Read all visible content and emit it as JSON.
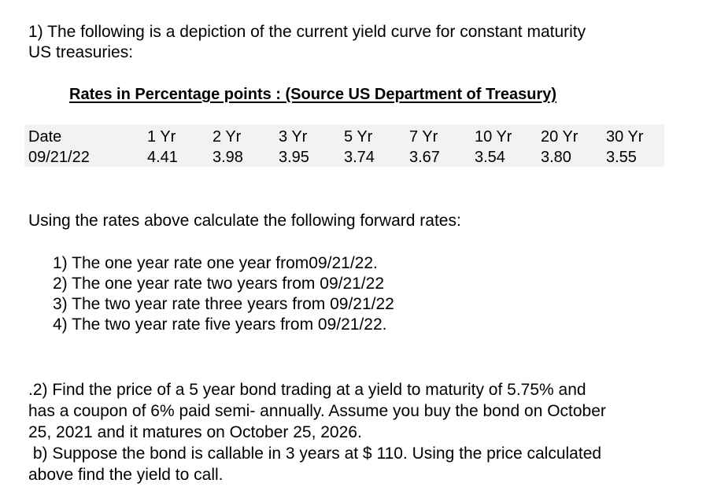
{
  "q1": {
    "line1": "1) The following is a depiction of the current yield curve for constant maturity",
    "line2": "US treasuries:",
    "table_heading": "Rates in Percentage points : (Source US Department of Treasury)",
    "table": {
      "headers": [
        "Date",
        "1 Yr",
        "2 Yr",
        "3 Yr",
        "5 Yr",
        "7 Yr",
        "10 Yr",
        "20 Yr",
        "30 Yr"
      ],
      "row": [
        "09/21/22",
        "4.41",
        "3.98",
        "3.95",
        "3.74",
        "3.67",
        "3.54",
        "3.80",
        "3.55"
      ]
    },
    "instruction": "Using the rates above calculate the following forward rates:",
    "items": [
      "1) The one year rate one year from09/21/22.",
      "2) The one year rate two years from 09/21/22",
      "3) The two year rate three years from  09/21/22",
      "4) The two year rate five years from 09/21/22."
    ]
  },
  "q2": {
    "lines": [
      ".2) Find the price of a 5 year bond trading at a yield to maturity of 5.75% and",
      "has a coupon of 6% paid semi- annually. Assume you buy the bond on October",
      "25, 2021  and it matures on October 25, 2026.",
      " b) Suppose the bond is callable in 3 years at $ 110. Using the price calculated",
      "above find the yield to call."
    ]
  }
}
